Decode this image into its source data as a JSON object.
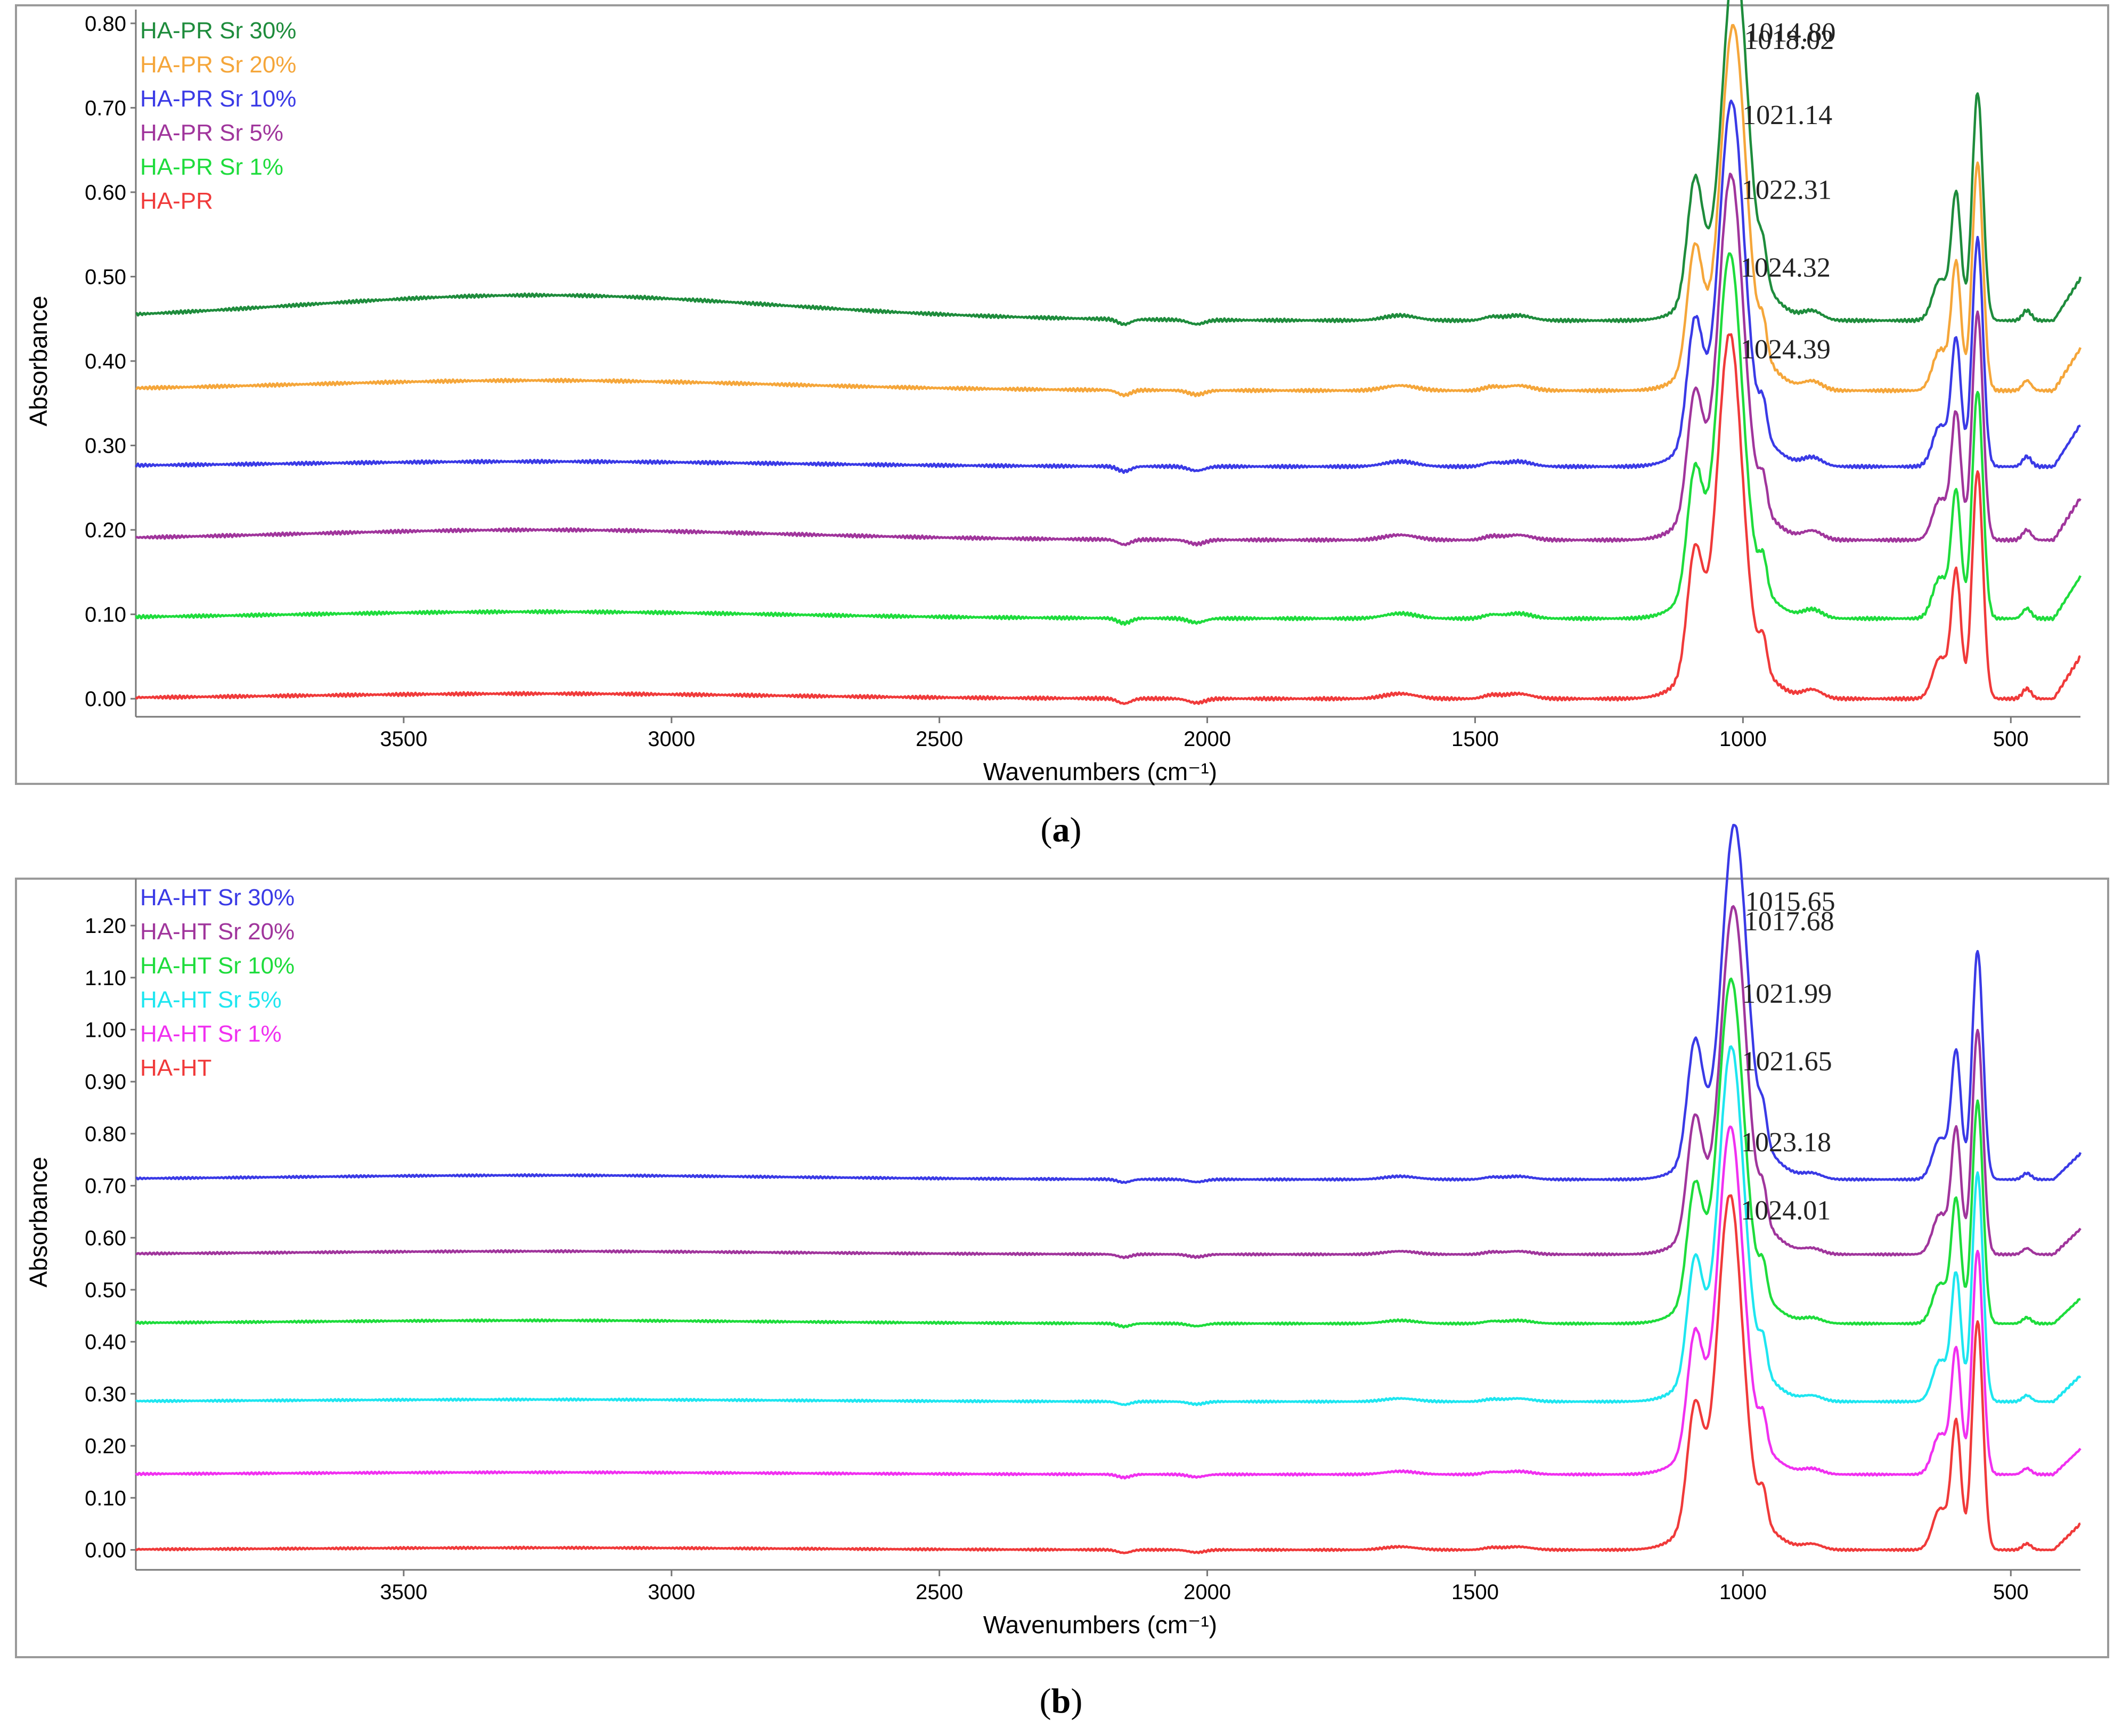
{
  "chart_data": [
    {
      "type": "line",
      "panel_label": "a",
      "xlabel": "Wavenumbers (cm⁻¹)",
      "ylabel": "Absorbance",
      "xlim": [
        4000,
        370
      ],
      "ylim": [
        -0.01,
        0.81
      ],
      "x_ticks": [
        "3500",
        "3000",
        "2500",
        "2000",
        "1500",
        "1000",
        "500"
      ],
      "y_ticks": [
        "0.00",
        "0.10",
        "0.20",
        "0.30",
        "0.40",
        "0.50",
        "0.60",
        "0.70",
        "0.80"
      ],
      "series": [
        {
          "name": "HA-PR",
          "color": "#f03a3a",
          "baseline": 0.0,
          "hump": 0.006,
          "amp": 1.0,
          "peak": 1024.39,
          "peak_label": "1024.39"
        },
        {
          "name": "HA-PR Sr 1%",
          "color": "#1edc3c",
          "baseline": 0.095,
          "hump": 0.008,
          "amp": 1.0,
          "peak": 1024.32,
          "peak_label": "1024.32"
        },
        {
          "name": "HA-PR Sr 5%",
          "color": "#a0359c",
          "baseline": 0.188,
          "hump": 0.012,
          "amp": 1.0,
          "peak": 1022.31,
          "peak_label": "1022.31"
        },
        {
          "name": "HA-PR Sr 10%",
          "color": "#3a3ae6",
          "baseline": 0.275,
          "hump": 0.006,
          "amp": 1.0,
          "peak": 1021.14,
          "peak_label": "1021.14"
        },
        {
          "name": "HA-PR Sr 20%",
          "color": "#f5a63a",
          "baseline": 0.365,
          "hump": 0.012,
          "amp": 1.0,
          "peak": 1018.02,
          "peak_label": "1018.02"
        },
        {
          "name": "HA-PR Sr 30%",
          "color": "#1e8c3c",
          "baseline": 0.448,
          "hump": 0.03,
          "amp": 1.0,
          "peak": 1014.8,
          "peak_label": "1014.80"
        }
      ]
    },
    {
      "type": "line",
      "panel_label": "b",
      "xlabel": "Wavenumbers (cm⁻¹)",
      "ylabel": "Absorbance",
      "xlim": [
        4000,
        370
      ],
      "ylim": [
        -0.02,
        1.28
      ],
      "x_ticks": [
        "3500",
        "3000",
        "2500",
        "2000",
        "1500",
        "1000",
        "500"
      ],
      "y_ticks": [
        "0.00",
        "0.10",
        "0.20",
        "0.30",
        "0.40",
        "0.50",
        "0.60",
        "0.70",
        "0.80",
        "0.90",
        "1.00",
        "1.10",
        "1.20"
      ],
      "series": [
        {
          "name": "HA-HT",
          "color": "#f03a3a",
          "baseline": 0.0,
          "hump": 0.004,
          "amp": 1.0,
          "peak": 1024.01,
          "peak_label": "1024.01"
        },
        {
          "name": "HA-HT Sr 1%",
          "color": "#f030f0",
          "baseline": 0.145,
          "hump": 0.004,
          "amp": 0.98,
          "peak": 1023.18,
          "peak_label": "1023.18"
        },
        {
          "name": "HA-HT Sr 5%",
          "color": "#1ee6f0",
          "baseline": 0.285,
          "hump": 0.004,
          "amp": 1.0,
          "peak": 1021.65,
          "peak_label": "1021.65"
        },
        {
          "name": "HA-HT Sr 10%",
          "color": "#1edc3c",
          "baseline": 0.435,
          "hump": 0.006,
          "amp": 0.97,
          "peak": 1021.99,
          "peak_label": "1021.99"
        },
        {
          "name": "HA-HT Sr 20%",
          "color": "#a0359c",
          "baseline": 0.568,
          "hump": 0.006,
          "amp": 0.98,
          "peak": 1017.68,
          "peak_label": "1017.68"
        },
        {
          "name": "HA-HT Sr 30%",
          "color": "#3a3ae6",
          "baseline": 0.712,
          "hump": 0.008,
          "amp": 1.0,
          "peak": 1015.65,
          "peak_label": "1015.65"
        }
      ]
    }
  ]
}
